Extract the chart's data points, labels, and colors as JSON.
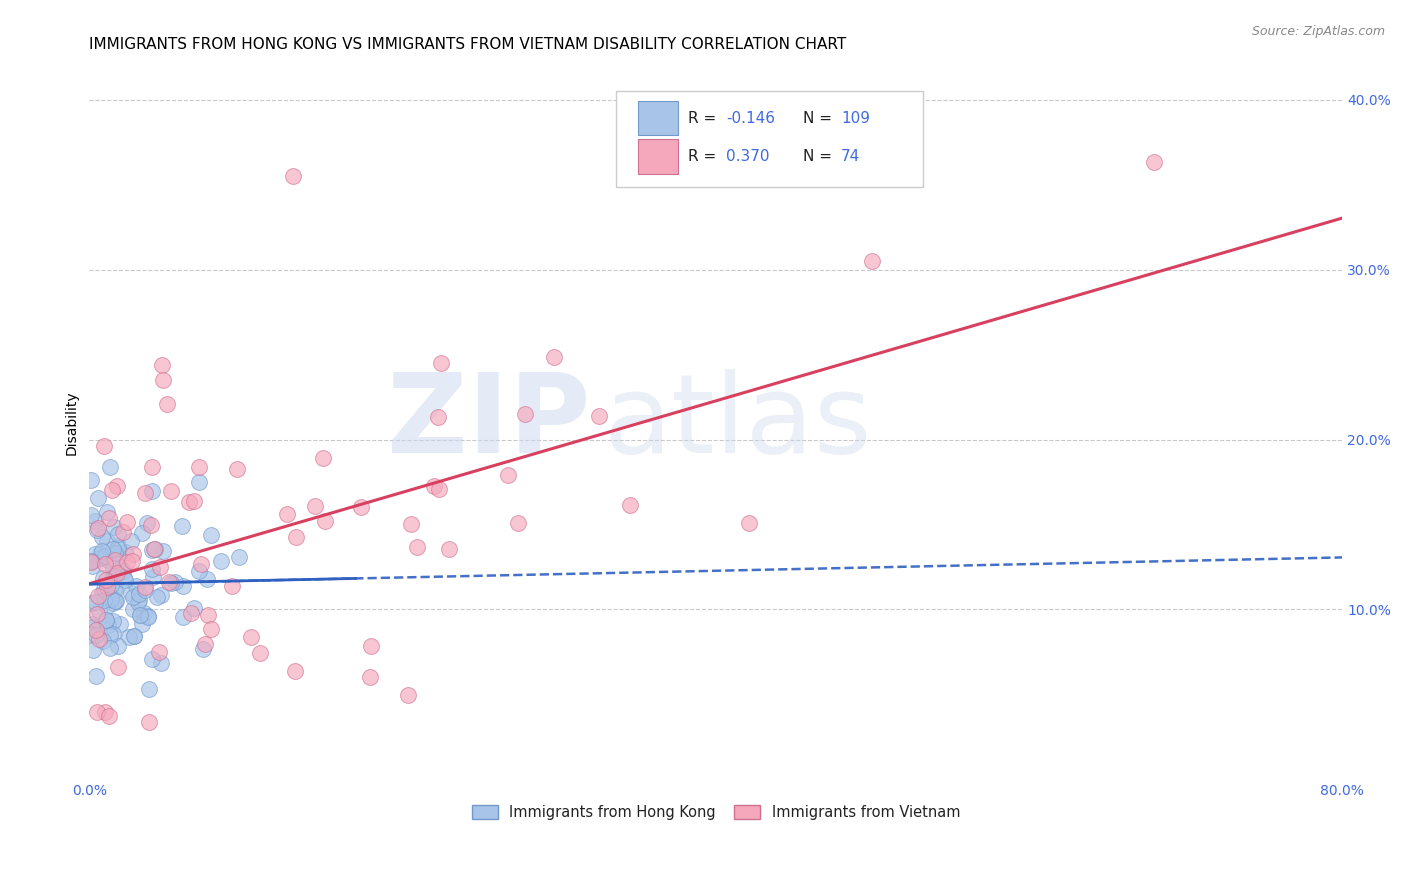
{
  "title": "IMMIGRANTS FROM HONG KONG VS IMMIGRANTS FROM VIETNAM DISABILITY CORRELATION CHART",
  "source": "Source: ZipAtlas.com",
  "ylabel": "Disability",
  "xlim": [
    0.0,
    0.8
  ],
  "ylim": [
    0.0,
    0.42
  ],
  "hk_R": -0.146,
  "hk_N": 109,
  "vn_R": 0.37,
  "vn_N": 74,
  "hk_color": "#a8c4e8",
  "vn_color": "#f5a8bc",
  "hk_line_color": "#3060c0",
  "vn_line_color": "#d84060",
  "hk_edge_color": "#7099cc",
  "vn_edge_color": "#d07090",
  "legend_label_hk": "Immigrants from Hong Kong",
  "legend_label_vn": "Immigrants from Vietnam",
  "watermark_zip": "ZIP",
  "watermark_atlas": "atlas",
  "background_color": "#ffffff",
  "grid_color": "#bbbbbb",
  "title_fontsize": 11,
  "axis_label_fontsize": 10,
  "tick_fontsize": 10,
  "tick_color": "#4169e1",
  "seed": 7
}
